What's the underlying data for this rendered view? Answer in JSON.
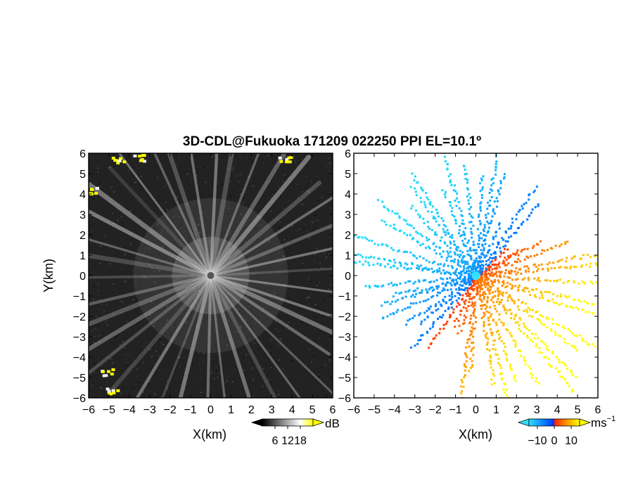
{
  "title": "3D-CDL@Fukuoka 171209 022250 PPI EL=10.1º",
  "chart_data": [
    {
      "type": "heatmap",
      "panel": "left",
      "quantity": "backscatter intensity",
      "xlabel": "X(km)",
      "ylabel": "Y(km)",
      "xlim": [
        -6,
        6
      ],
      "ylim": [
        -6,
        6
      ],
      "x_ticks": [
        -6,
        -5,
        -4,
        -3,
        -2,
        -1,
        0,
        1,
        2,
        3,
        4,
        5,
        6
      ],
      "y_ticks": [
        -6,
        -5,
        -4,
        -3,
        -2,
        -1,
        0,
        1,
        2,
        3,
        4,
        5,
        6
      ],
      "colorbar": {
        "unit": "dB",
        "ticks": [
          6,
          12,
          18
        ],
        "range": [
          0,
          24
        ],
        "colors": [
          "#000000",
          "#ffffff",
          "#ffff00"
        ]
      },
      "radar_center": [
        0,
        0
      ],
      "hard_targets": [
        {
          "x": -4.6,
          "y": 5.7
        },
        {
          "x": -3.6,
          "y": 5.8
        },
        {
          "x": 3.6,
          "y": 5.7
        },
        {
          "x": -5.9,
          "y": 4.2
        },
        {
          "x": -5.1,
          "y": -4.7
        },
        {
          "x": -4.9,
          "y": -5.6
        }
      ]
    },
    {
      "type": "heatmap",
      "panel": "right",
      "quantity": "Doppler velocity",
      "xlabel": "X(km)",
      "xlim": [
        -6,
        6
      ],
      "ylim": [
        -6,
        6
      ],
      "x_ticks": [
        -6,
        -5,
        -4,
        -3,
        -2,
        -1,
        0,
        1,
        2,
        3,
        4,
        5,
        6
      ],
      "y_ticks": [
        -6,
        -5,
        -4,
        -3,
        -2,
        -1,
        0,
        1,
        2,
        3,
        4,
        5,
        6
      ],
      "colorbar": {
        "unit": "ms⁻¹",
        "ticks": [
          -10,
          0,
          10
        ],
        "range": [
          -15,
          15
        ],
        "colors": [
          "#33e0ff",
          "#0033ff",
          "#ff2200",
          "#ffff00"
        ]
      },
      "flow": "approaching from northwest (negative), receding toward southeast (positive)"
    }
  ],
  "axis_labels": {
    "y": "Y(km)",
    "x_left": "X(km)",
    "x_right": "X(km)",
    "cb_left_unit": "dB",
    "cb_right_unit": "ms",
    "cb_right_sup": "−1"
  },
  "cb_left_ticks": [
    "6",
    "12",
    "18"
  ],
  "cb_right_ticks": [
    "−10",
    "0",
    "10"
  ],
  "x_tick_labels": [
    "−6",
    "−5",
    "−4",
    "−3",
    "−2",
    "−1",
    "0",
    "1",
    "2",
    "3",
    "4",
    "5",
    "6"
  ],
  "y_tick_labels": [
    "6",
    "5",
    "4",
    "3",
    "2",
    "1",
    "0",
    "−1",
    "−2",
    "−3",
    "−4",
    "−5",
    "−6"
  ]
}
